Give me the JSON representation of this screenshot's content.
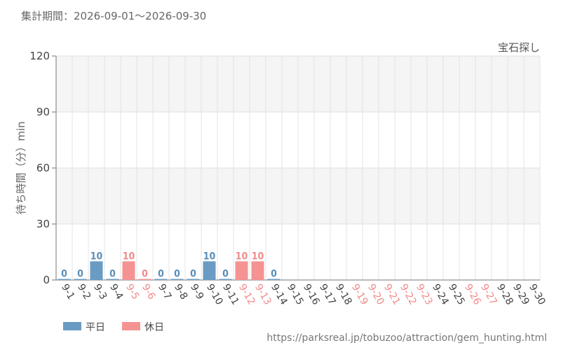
{
  "header": {
    "period_label": "集計期間：2026-09-01〜2026-09-30"
  },
  "footer": {
    "url": "https://parksreal.jp/tobuzoo/attraction/gem_hunting.html"
  },
  "colors": {
    "weekday": "#6a9bc3",
    "holiday": "#f59393",
    "weekday_text": "#5b8db8",
    "holiday_text": "#f08a8a"
  },
  "chart_data": {
    "type": "bar",
    "title": "宝石探し",
    "ylabel": "待ち時間（分）min",
    "ylim": [
      0,
      120
    ],
    "yticks": [
      0,
      30,
      60,
      90,
      120
    ],
    "grid": true,
    "legend_position": "bottom-left",
    "legend": [
      {
        "key": "weekday",
        "label": "平日"
      },
      {
        "key": "holiday",
        "label": "休日"
      }
    ],
    "categories": [
      "9-1",
      "9-2",
      "9-3",
      "9-4",
      "9-5",
      "9-6",
      "9-7",
      "9-8",
      "9-9",
      "9-10",
      "9-11",
      "9-12",
      "9-13",
      "9-14",
      "9-15",
      "9-16",
      "9-17",
      "9-18",
      "9-19",
      "9-20",
      "9-21",
      "9-22",
      "9-23",
      "9-24",
      "9-25",
      "9-26",
      "9-27",
      "9-28",
      "9-29",
      "9-30"
    ],
    "day_type": [
      "weekday",
      "weekday",
      "weekday",
      "weekday",
      "holiday",
      "holiday",
      "weekday",
      "weekday",
      "weekday",
      "weekday",
      "weekday",
      "holiday",
      "holiday",
      "weekday",
      "weekday",
      "weekday",
      "weekday",
      "weekday",
      "holiday",
      "holiday",
      "holiday",
      "holiday",
      "holiday",
      "weekday",
      "weekday",
      "holiday",
      "holiday",
      "weekday",
      "weekday",
      "weekday"
    ],
    "values": [
      0,
      0,
      10,
      0,
      10,
      0,
      0,
      0,
      0,
      10,
      0,
      10,
      10,
      0,
      null,
      null,
      null,
      null,
      null,
      null,
      null,
      null,
      null,
      null,
      null,
      null,
      null,
      null,
      null,
      null
    ]
  }
}
